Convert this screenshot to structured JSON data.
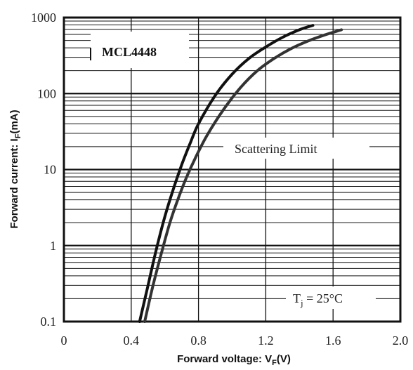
{
  "chart_data": {
    "type": "line",
    "xlabel_main": "Forward voltage: V",
    "xlabel_sub": "F",
    "xlabel_tail": "(V)",
    "ylabel_main": "Forward current: I",
    "ylabel_sub": "F",
    "ylabel_tail": "(mA)",
    "x_scale": "linear",
    "y_scale": "log",
    "xlim": [
      0,
      2.0
    ],
    "ylim": [
      0.1,
      1000
    ],
    "x_ticks": [
      "0",
      "0.4",
      "0.8",
      "1.2",
      "1.6",
      "2.0"
    ],
    "y_ticks": [
      "1000",
      "100",
      "10",
      "1",
      "0.1"
    ],
    "grid": true,
    "annotations": {
      "part_number": "MCL4448",
      "scatter_label": "Scattering Limit",
      "temp_t": "T",
      "temp_sub": "j",
      "temp_rest": " = 25°C"
    },
    "series": [
      {
        "color": "#111111",
        "points": [
          [
            0.45,
            0.1
          ],
          [
            0.5,
            0.3
          ],
          [
            0.55,
            0.9
          ],
          [
            0.6,
            2.4
          ],
          [
            0.65,
            5.5
          ],
          [
            0.7,
            11.5
          ],
          [
            0.75,
            22
          ],
          [
            0.8,
            40
          ],
          [
            0.9,
            95
          ],
          [
            1.0,
            180
          ],
          [
            1.1,
            290
          ],
          [
            1.2,
            410
          ],
          [
            1.3,
            550
          ],
          [
            1.4,
            690
          ],
          [
            1.48,
            790
          ]
        ]
      },
      {
        "color": "#333333",
        "points": [
          [
            0.48,
            0.1
          ],
          [
            0.53,
            0.3
          ],
          [
            0.58,
            0.8
          ],
          [
            0.63,
            2.0
          ],
          [
            0.68,
            4.2
          ],
          [
            0.73,
            8.0
          ],
          [
            0.78,
            14
          ],
          [
            0.85,
            28
          ],
          [
            0.95,
            62
          ],
          [
            1.05,
            120
          ],
          [
            1.15,
            200
          ],
          [
            1.25,
            290
          ],
          [
            1.35,
            390
          ],
          [
            1.45,
            490
          ],
          [
            1.55,
            590
          ],
          [
            1.65,
            690
          ]
        ]
      }
    ]
  }
}
